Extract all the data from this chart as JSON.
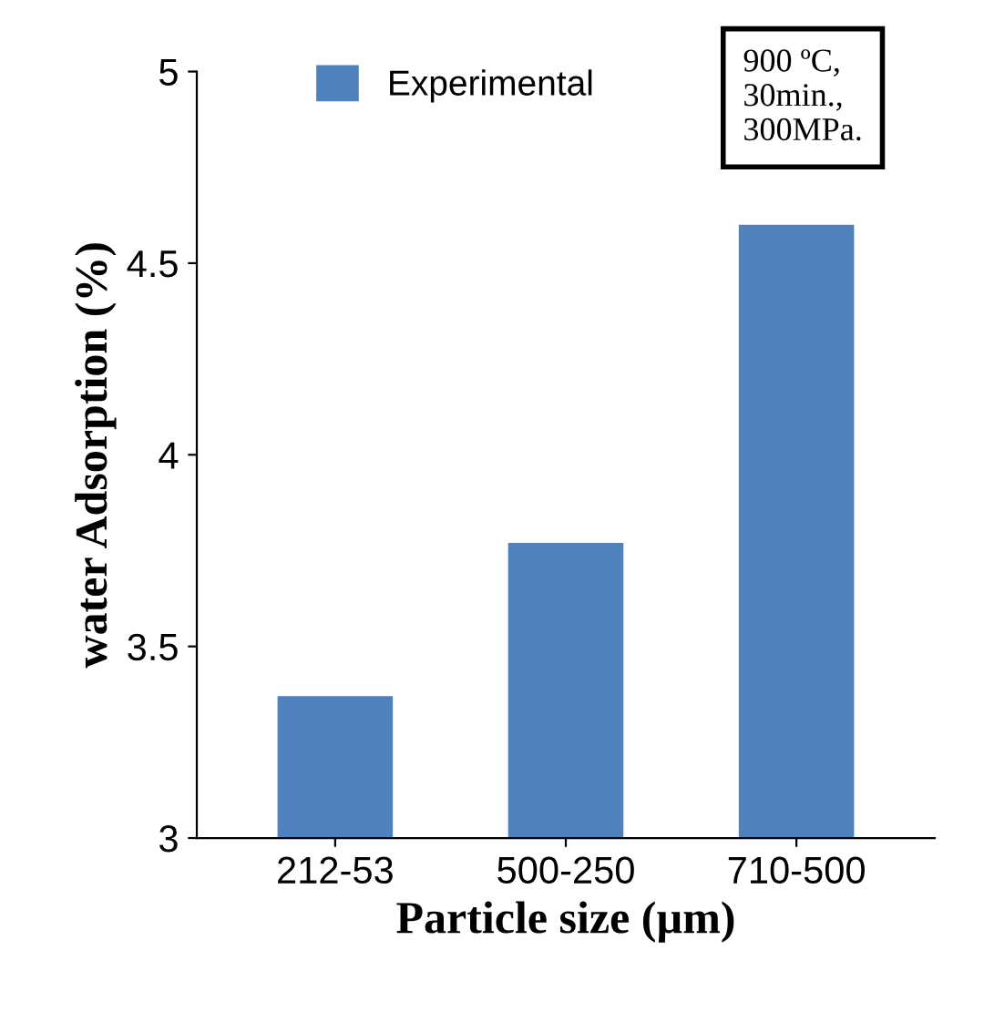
{
  "chart_data": {
    "type": "bar",
    "xlabel": "Particle size (µm)",
    "ylabel": "water Adsorption (%)",
    "categories": [
      "212-53",
      "500-250",
      "710-500"
    ],
    "series": [
      {
        "name": "Experimental",
        "color": "#4f81bd",
        "values": [
          3.37,
          3.77,
          4.6
        ]
      }
    ],
    "ylim": [
      3,
      5
    ],
    "yticks": [
      3,
      3.5,
      4,
      4.5,
      5
    ],
    "legend": "top",
    "grid": false,
    "annotations": [
      "900 ºC,\n30min.,\n300MPa."
    ]
  }
}
